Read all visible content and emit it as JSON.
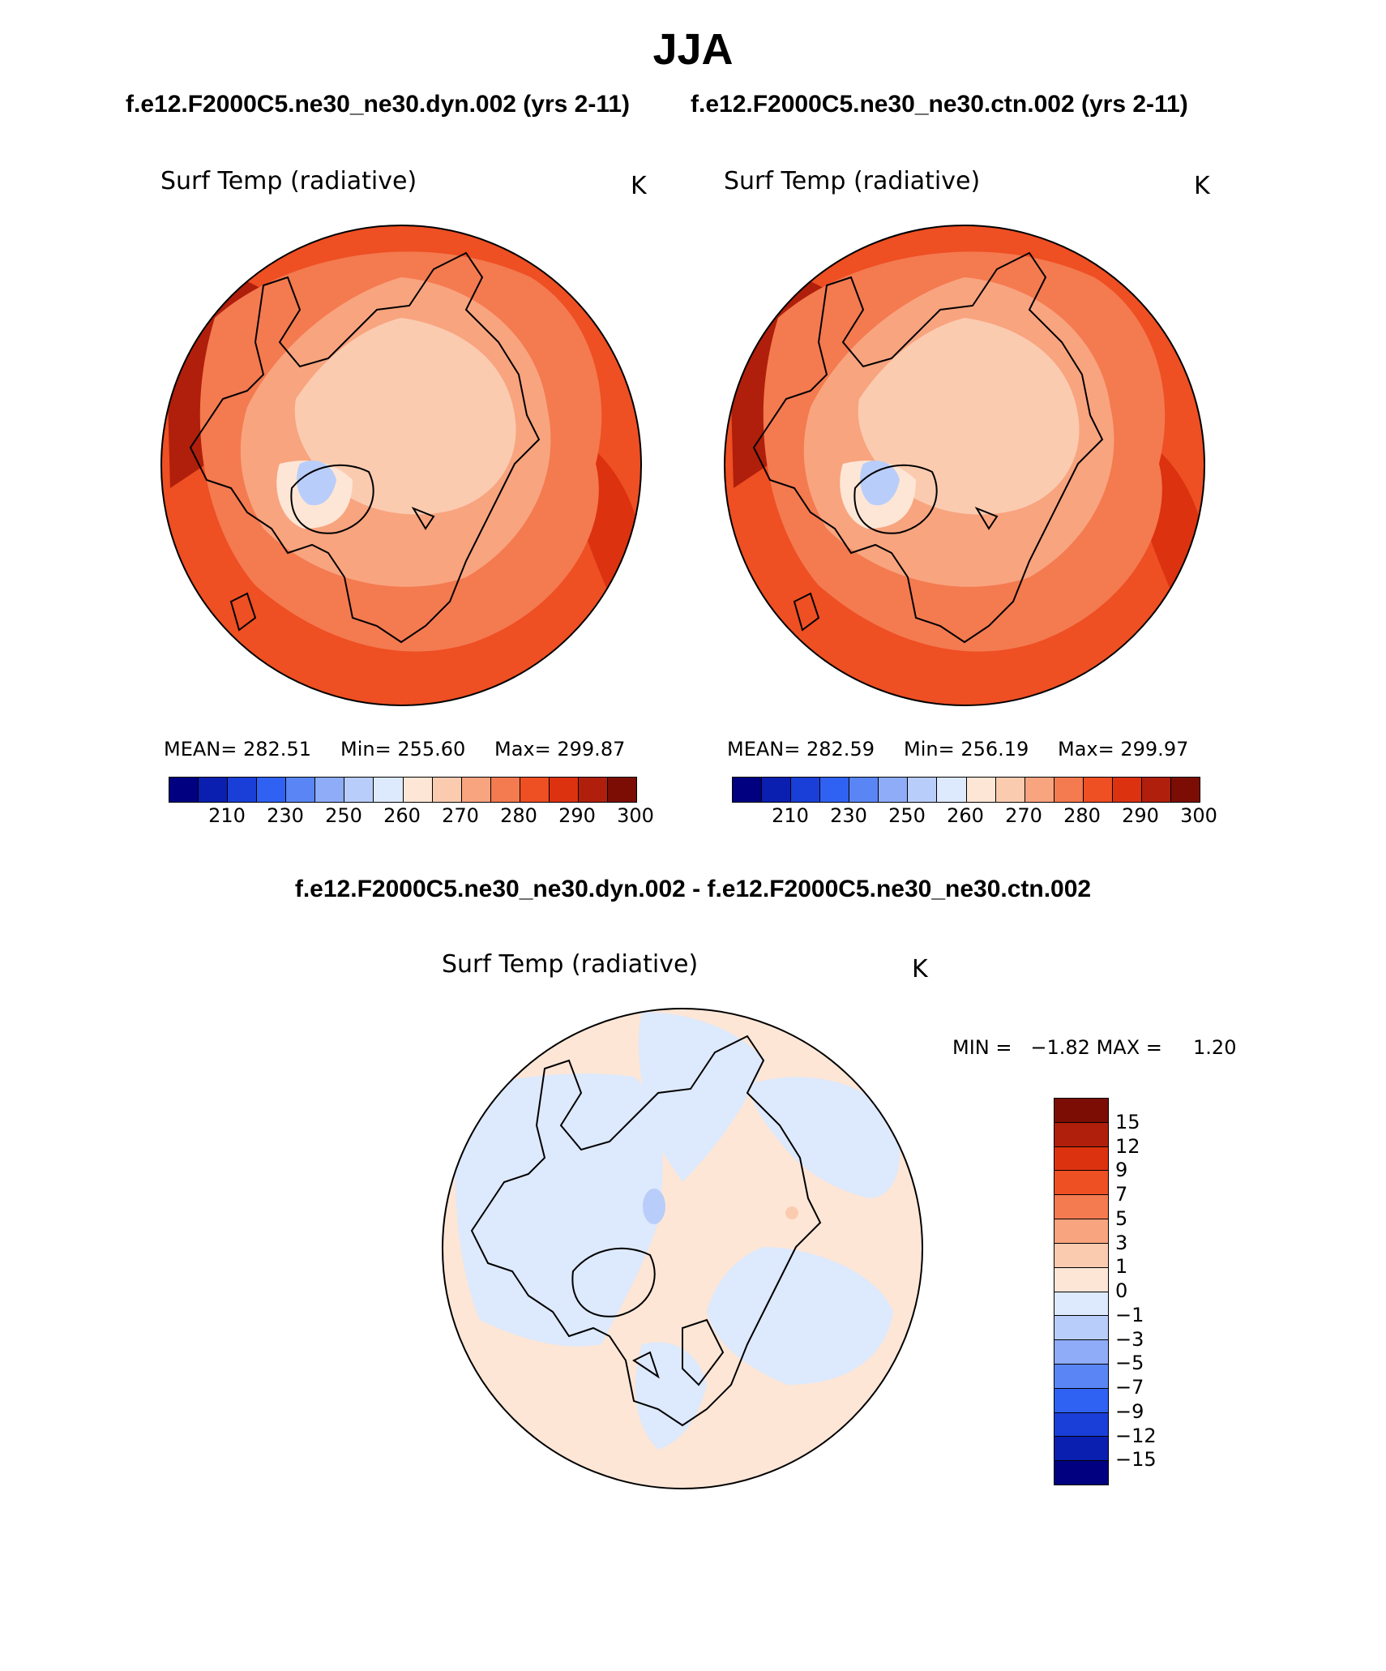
{
  "header": {
    "season": "JJA",
    "subtitle_left": "f.e12.F2000C5.ne30_ne30.dyn.002 (yrs 2-11)",
    "subtitle_right": "f.e12.F2000C5.ne30_ne30.ctn.002 (yrs 2-11)",
    "diff_title": "f.e12.F2000C5.ne30_ne30.dyn.002 - f.e12.F2000C5.ne30_ne30.ctn.002"
  },
  "panels": [
    {
      "id": "dyn",
      "variable": "Surf Temp (radiative)",
      "units": "K",
      "stats": {
        "mean_label": "MEAN=",
        "mean": "282.51",
        "min_label": "Min=",
        "min": "255.60",
        "max_label": "Max=",
        "max": "299.87"
      }
    },
    {
      "id": "ctn",
      "variable": "Surf Temp (radiative)",
      "units": "K",
      "stats": {
        "mean_label": "MEAN=",
        "mean": "282.59",
        "min_label": "Min=",
        "min": "256.19",
        "max_label": "Max=",
        "max": "299.97"
      }
    },
    {
      "id": "diff",
      "variable": "Surf Temp (radiative)",
      "units": "K",
      "stats": {
        "min_label": "MIN =",
        "min": "−1.82",
        "max_label": "MAX =",
        "max": "1.20"
      }
    }
  ],
  "colorbar_abs": {
    "colors": [
      "#000080",
      "#0a1fb0",
      "#1a3fd8",
      "#2f62f2",
      "#5a86f5",
      "#8eacf7",
      "#b9cdfa",
      "#dde9fc",
      "#fde6d6",
      "#fbcbb0",
      "#f8a47f",
      "#f47a50",
      "#ee4f23",
      "#dc3210",
      "#b01f0b",
      "#7b0d05"
    ],
    "tick_labels": [
      "210",
      "230",
      "250",
      "260",
      "270",
      "280",
      "290",
      "300"
    ]
  },
  "colorbar_diff": {
    "colors": [
      "#000080",
      "#0a1fb0",
      "#1a3fd8",
      "#2f62f2",
      "#5a86f5",
      "#8eacf7",
      "#b9cdfa",
      "#dde9fc",
      "#fde6d6",
      "#fbcbb0",
      "#f8a47f",
      "#f47a50",
      "#ee4f23",
      "#dc3210",
      "#b01f0b",
      "#7b0d05"
    ],
    "tick_labels": [
      "15",
      "12",
      "9",
      "7",
      "5",
      "3",
      "1",
      "0",
      "−1",
      "−3",
      "−5",
      "−7",
      "−9",
      "−12",
      "−15"
    ]
  },
  "map_colors": {
    "warm_outer": "#ee4f23",
    "warm_mid": "#f47a50",
    "warm_inner": "#f8a47f",
    "cool_core": "#fbcbb0",
    "pale": "#fde6d6",
    "ice": "#dde9fc",
    "ice_deep": "#b9cdfa",
    "hot_edge": "#dc3210",
    "hottest": "#b01f0b",
    "diff_pos": "#fde6d6",
    "diff_neg": "#dde9fc",
    "diff_neg2": "#b9cdfa",
    "diff_pos2": "#fbcbb0",
    "coast": "#000000"
  }
}
